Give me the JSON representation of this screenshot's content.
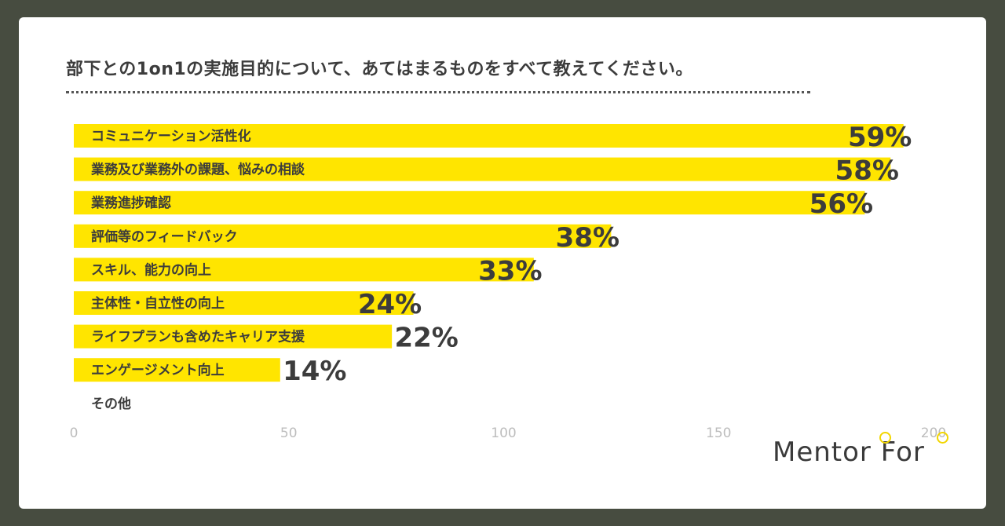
{
  "title": "部下との1on1の実施目的について、あてはまるものをすべて教えてください。",
  "logo": "Mentor For",
  "colors": {
    "background": "#474c40",
    "card": "#ffffff",
    "bar": "#ffe500",
    "text": "#3c3c3c",
    "tick": "#bdbdbd",
    "logo_accent": "#f2d600"
  },
  "chart_data": {
    "type": "bar",
    "orientation": "horizontal",
    "title": "部下との1on1の実施目的について、あてはまるものをすべて教えてください。",
    "categories": [
      "コミュニケーション活性化",
      "業務及び業務外の課題、悩みの相談",
      "業務進捗確認",
      "評価等のフィードバック",
      "スキル、能力の向上",
      "主体性・自立性の向上",
      "ライフプランも含めたキャリア支援",
      "エンゲージメント向上",
      "その他"
    ],
    "values": [
      193,
      190,
      184,
      125,
      107,
      79,
      74,
      48,
      0
    ],
    "data_labels": [
      "59%",
      "58%",
      "56%",
      "38%",
      "33%",
      "24%",
      "22%",
      "14%",
      ""
    ],
    "xlim": [
      0,
      200
    ],
    "xticks": [
      "0",
      "50",
      "100",
      "150",
      "200"
    ],
    "grid": false,
    "legend": "none"
  }
}
